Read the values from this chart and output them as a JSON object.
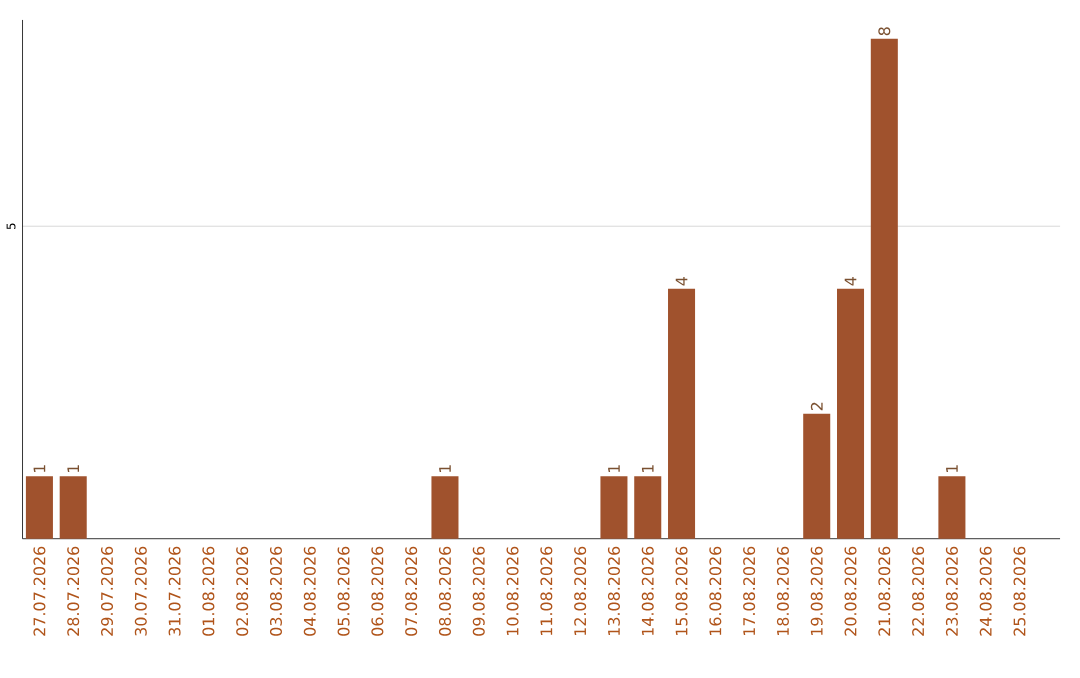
{
  "chart_data": {
    "type": "bar",
    "categories": [
      "27.07.2026",
      "28.07.2026",
      "29.07.2026",
      "30.07.2026",
      "31.07.2026",
      "01.08.2026",
      "02.08.2026",
      "03.08.2026",
      "04.08.2026",
      "05.08.2026",
      "06.08.2026",
      "07.08.2026",
      "08.08.2026",
      "09.08.2026",
      "10.08.2026",
      "11.08.2026",
      "12.08.2026",
      "13.08.2026",
      "14.08.2026",
      "15.08.2026",
      "16.08.2026",
      "17.08.2026",
      "18.08.2026",
      "19.08.2026",
      "20.08.2026",
      "21.08.2026",
      "22.08.2026",
      "23.08.2026",
      "24.08.2026",
      "25.08.2026"
    ],
    "values": [
      1,
      1,
      0,
      0,
      0,
      0,
      0,
      0,
      0,
      0,
      0,
      0,
      1,
      0,
      0,
      0,
      0,
      1,
      1,
      4,
      0,
      0,
      0,
      2,
      4,
      8,
      0,
      1,
      0,
      0
    ],
    "value_labels": [
      "1",
      "1",
      null,
      null,
      null,
      null,
      null,
      null,
      null,
      null,
      null,
      null,
      "1",
      null,
      null,
      null,
      null,
      "1",
      "1",
      "4",
      null,
      null,
      null,
      "2",
      "4",
      "8",
      null,
      "1",
      null,
      null
    ],
    "color": "#a0522d",
    "ylim": [
      0,
      8.3
    ],
    "yticks": [
      5
    ],
    "grid": "y"
  }
}
